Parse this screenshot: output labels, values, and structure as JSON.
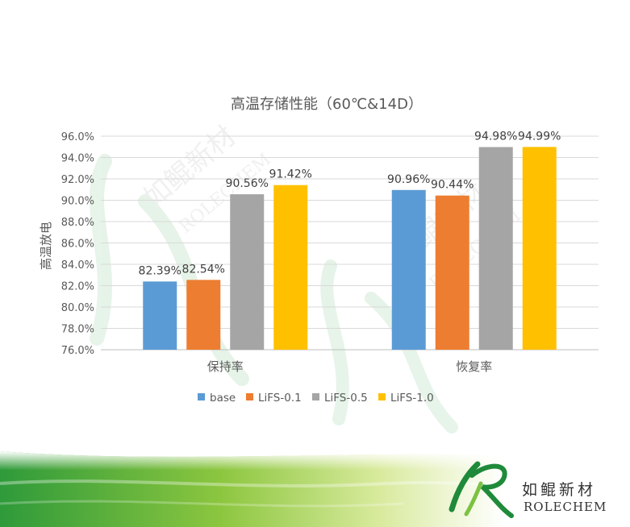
{
  "chart_data": {
    "type": "bar",
    "title": "高温存储性能（60℃&14D）",
    "ylabel": "高温放电",
    "xlabel": "",
    "categories": [
      "保持率",
      "恢复率"
    ],
    "series": [
      {
        "name": "base",
        "values": [
          82.39,
          90.96
        ],
        "labels": [
          "82.39%",
          "90.96%"
        ],
        "color": "#5b9bd5"
      },
      {
        "name": "LiFS-0.1",
        "values": [
          82.54,
          90.44
        ],
        "labels": [
          "82.54%",
          "90.44%"
        ],
        "color": "#ed7d31"
      },
      {
        "name": "LiFS-0.5",
        "values": [
          90.56,
          94.98
        ],
        "labels": [
          "90.56%",
          "94.98%"
        ],
        "color": "#a5a5a5"
      },
      {
        "name": "LiFS-1.0",
        "values": [
          91.42,
          94.99
        ],
        "labels": [
          "91.42%",
          "94.99%"
        ],
        "color": "#ffc000"
      }
    ],
    "ylim": [
      76,
      96
    ],
    "yticks": [
      "76.0%",
      "78.0%",
      "80.0%",
      "82.0%",
      "84.0%",
      "86.0%",
      "88.0%",
      "90.0%",
      "92.0%",
      "94.0%",
      "96.0%"
    ],
    "grid": true,
    "legend": "bottom"
  },
  "watermark": {
    "cn": "如鲲新材",
    "en": "ROLECHEM"
  },
  "logo": {
    "cn": "如鲲新材",
    "en": "ROLECHEM"
  }
}
